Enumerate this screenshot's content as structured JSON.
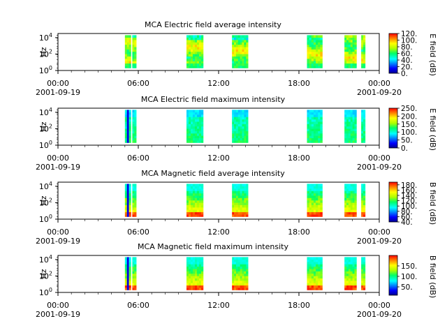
{
  "chart_data": [
    {
      "type": "heatmap",
      "title": "MCA  Electric field average intensity",
      "ylabel": "Hz",
      "y_ticks": [
        {
          "base": "10",
          "exp": "0"
        },
        {
          "base": "10",
          "exp": "2"
        },
        {
          "base": "10",
          "exp": "4"
        }
      ],
      "x_ticks": [
        {
          "time": "00:00",
          "date": "2001-09-19"
        },
        {
          "time": "06:00",
          "date": ""
        },
        {
          "time": "12:00",
          "date": ""
        },
        {
          "time": "18:00",
          "date": ""
        },
        {
          "time": "00:00",
          "date": "2001-09-20"
        }
      ],
      "colorbar": {
        "label": "E field (dB)",
        "ticks": [
          "120.",
          "100.",
          "80.",
          "60.",
          "40.",
          "20.",
          "0."
        ],
        "range": [
          0,
          120
        ]
      },
      "xlim_hours": [
        0,
        24
      ],
      "ylim_exponent": [
        0,
        4.5
      ],
      "segments_hours": [
        [
          5.0,
          5.45
        ],
        [
          5.55,
          5.85
        ],
        [
          9.6,
          10.85
        ],
        [
          13.0,
          14.2
        ],
        [
          18.6,
          19.75
        ],
        [
          21.4,
          22.3
        ],
        [
          22.65,
          22.95
        ]
      ],
      "color_profile": "warm"
    },
    {
      "type": "heatmap",
      "title": "MCA  Electric field maximum intensity",
      "ylabel": "Hz",
      "y_ticks": [
        {
          "base": "10",
          "exp": "0"
        },
        {
          "base": "10",
          "exp": "2"
        },
        {
          "base": "10",
          "exp": "4"
        }
      ],
      "x_ticks": [
        {
          "time": "00:00",
          "date": "2001-09-19"
        },
        {
          "time": "06:00",
          "date": ""
        },
        {
          "time": "12:00",
          "date": ""
        },
        {
          "time": "18:00",
          "date": ""
        },
        {
          "time": "00:00",
          "date": "2001-09-20"
        }
      ],
      "colorbar": {
        "label": "E field (dB)",
        "ticks": [
          "250.",
          "200.",
          "150.",
          "100.",
          "50.",
          "0."
        ],
        "range": [
          0,
          250
        ]
      },
      "xlim_hours": [
        0,
        24
      ],
      "ylim_exponent": [
        0,
        4.5
      ],
      "segments_hours": [
        [
          5.0,
          5.45
        ],
        [
          5.55,
          5.85
        ],
        [
          9.6,
          10.85
        ],
        [
          13.0,
          14.2
        ],
        [
          18.6,
          19.75
        ],
        [
          21.4,
          22.3
        ],
        [
          22.65,
          22.95
        ]
      ],
      "color_profile": "cool"
    },
    {
      "type": "heatmap",
      "title": "MCA  Magnetic field average intensity",
      "ylabel": "Hz",
      "y_ticks": [
        {
          "base": "10",
          "exp": "0"
        },
        {
          "base": "10",
          "exp": "2"
        },
        {
          "base": "10",
          "exp": "4"
        }
      ],
      "x_ticks": [
        {
          "time": "00:00",
          "date": "2001-09-19"
        },
        {
          "time": "06:00",
          "date": ""
        },
        {
          "time": "12:00",
          "date": ""
        },
        {
          "time": "18:00",
          "date": ""
        },
        {
          "time": "00:00",
          "date": "2001-09-20"
        }
      ],
      "colorbar": {
        "label": "B field (dB)",
        "ticks": [
          "180.",
          "160.",
          "140.",
          "120.",
          "100.",
          "80.",
          "60.",
          "40."
        ],
        "range": [
          40,
          190
        ]
      },
      "xlim_hours": [
        0,
        24
      ],
      "ylim_exponent": [
        0,
        4.5
      ],
      "segments_hours": [
        [
          5.0,
          5.45
        ],
        [
          5.55,
          5.85
        ],
        [
          9.6,
          10.85
        ],
        [
          13.0,
          14.2
        ],
        [
          18.6,
          19.75
        ],
        [
          21.4,
          22.3
        ],
        [
          22.65,
          22.95
        ]
      ],
      "color_profile": "bottom-hot"
    },
    {
      "type": "heatmap",
      "title": "MCA  Magnetic field maximum intensity",
      "ylabel": "Hz",
      "y_ticks": [
        {
          "base": "10",
          "exp": "0"
        },
        {
          "base": "10",
          "exp": "2"
        },
        {
          "base": "10",
          "exp": "4"
        }
      ],
      "x_ticks": [
        {
          "time": "00:00",
          "date": "2001-09-19"
        },
        {
          "time": "06:00",
          "date": ""
        },
        {
          "time": "12:00",
          "date": ""
        },
        {
          "time": "18:00",
          "date": ""
        },
        {
          "time": "00:00",
          "date": "2001-09-20"
        }
      ],
      "colorbar": {
        "label": "B field (dB)",
        "ticks": [
          "150.",
          "100.",
          "50."
        ],
        "range": [
          10,
          200
        ]
      },
      "xlim_hours": [
        0,
        24
      ],
      "ylim_exponent": [
        0,
        4.5
      ],
      "segments_hours": [
        [
          5.0,
          5.45
        ],
        [
          5.55,
          5.85
        ],
        [
          9.6,
          10.85
        ],
        [
          13.0,
          14.2
        ],
        [
          18.6,
          19.75
        ],
        [
          21.4,
          22.3
        ],
        [
          22.65,
          22.95
        ]
      ],
      "color_profile": "bottom-hot"
    }
  ]
}
